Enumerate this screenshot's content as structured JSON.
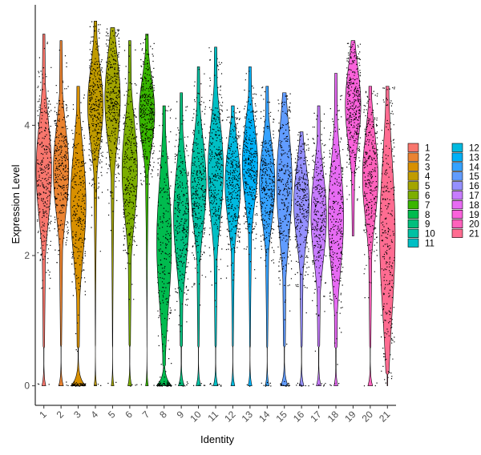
{
  "chart_data": {
    "type": "violin",
    "title": "",
    "xlabel": "Identity",
    "ylabel": "Expression Level",
    "ylim": [
      -0.3,
      5.85
    ],
    "yticks": [
      0,
      2,
      4
    ],
    "grid": false,
    "legend_placement": "right",
    "categories": [
      "1",
      "2",
      "3",
      "4",
      "5",
      "6",
      "7",
      "8",
      "9",
      "10",
      "11",
      "12",
      "13",
      "14",
      "15",
      "16",
      "17",
      "18",
      "19",
      "20",
      "21"
    ],
    "colors": [
      "#F8766D",
      "#EA8331",
      "#D89000",
      "#C09B00",
      "#A3A500",
      "#7CAE00",
      "#39B600",
      "#00BB4E",
      "#00BF7D",
      "#00C1A3",
      "#00BFC4",
      "#00BAE0",
      "#00B0F6",
      "#35A2FF",
      "#619CFF",
      "#9590FF",
      "#C77CFF",
      "#E76BF3",
      "#FA62DB",
      "#FF62BC",
      "#FF6C91"
    ],
    "series": [
      {
        "name": "1",
        "max": 5.4,
        "median": 3.3,
        "q1": 2.8,
        "q3": 3.8,
        "zero_frac": 0.02
      },
      {
        "name": "2",
        "max": 5.3,
        "median": 3.3,
        "q1": 2.8,
        "q3": 3.7,
        "zero_frac": 0.03
      },
      {
        "name": "3",
        "max": 4.6,
        "median": 2.8,
        "q1": 2.2,
        "q3": 3.3,
        "zero_frac": 0.3
      },
      {
        "name": "4",
        "max": 5.6,
        "median": 4.3,
        "q1": 3.9,
        "q3": 4.7,
        "zero_frac": 0.01
      },
      {
        "name": "5",
        "max": 5.5,
        "median": 4.4,
        "q1": 3.9,
        "q3": 4.8,
        "zero_frac": 0.01
      },
      {
        "name": "6",
        "max": 5.3,
        "median": 3.3,
        "q1": 2.8,
        "q3": 3.8,
        "zero_frac": 0.02
      },
      {
        "name": "7",
        "max": 5.4,
        "median": 4.2,
        "q1": 3.8,
        "q3": 4.5,
        "zero_frac": 0.01
      },
      {
        "name": "8",
        "max": 4.3,
        "median": 2.2,
        "q1": 1.5,
        "q3": 2.8,
        "zero_frac": 0.35
      },
      {
        "name": "9",
        "max": 4.5,
        "median": 2.6,
        "q1": 2.1,
        "q3": 3.1,
        "zero_frac": 0.05
      },
      {
        "name": "10",
        "max": 4.9,
        "median": 3.1,
        "q1": 2.6,
        "q3": 3.5,
        "zero_frac": 0.03
      },
      {
        "name": "11",
        "max": 5.2,
        "median": 3.3,
        "q1": 2.8,
        "q3": 3.8,
        "zero_frac": 0.03
      },
      {
        "name": "12",
        "max": 4.3,
        "median": 3.1,
        "q1": 2.7,
        "q3": 3.5,
        "zero_frac": 0.02
      },
      {
        "name": "13",
        "max": 4.9,
        "median": 3.4,
        "q1": 3.0,
        "q3": 3.8,
        "zero_frac": 0.02
      },
      {
        "name": "14",
        "max": 4.6,
        "median": 3.1,
        "q1": 2.7,
        "q3": 3.5,
        "zero_frac": 0.02
      },
      {
        "name": "15",
        "max": 4.5,
        "median": 3.1,
        "q1": 2.5,
        "q3": 3.6,
        "zero_frac": 0.08
      },
      {
        "name": "16",
        "max": 3.9,
        "median": 2.8,
        "q1": 2.4,
        "q3": 3.2,
        "zero_frac": 0.03
      },
      {
        "name": "17",
        "max": 4.3,
        "median": 2.6,
        "q1": 2.1,
        "q3": 3.0,
        "zero_frac": 0.03
      },
      {
        "name": "18",
        "max": 4.8,
        "median": 2.6,
        "q1": 2.0,
        "q3": 3.1,
        "zero_frac": 0.02
      },
      {
        "name": "19",
        "max": 5.3,
        "median": 4.3,
        "q1": 3.9,
        "q3": 4.7,
        "zero_frac": 0.0
      },
      {
        "name": "20",
        "max": 4.6,
        "median": 3.2,
        "q1": 2.7,
        "q3": 3.6,
        "zero_frac": 0.03
      },
      {
        "name": "21",
        "max": 4.6,
        "median": 2.3,
        "q1": 1.4,
        "q3": 3.0,
        "zero_frac": 0.0
      }
    ]
  }
}
